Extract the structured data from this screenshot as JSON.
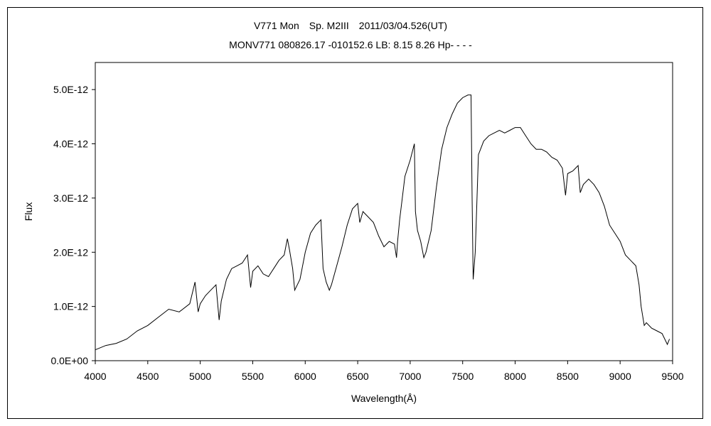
{
  "chart_data": {
    "type": "line",
    "title": "V771 Mon　Sp. M2III　2011/03/04.526(UT)",
    "subtitle": "MONV771 080826.17 -010152.6 LB: 8.15 8.26 Hp- - - -",
    "xlabel": "Wavelength(Å)",
    "ylabel": "Flux",
    "xlim": [
      4000,
      9500
    ],
    "ylim": [
      0,
      5.5e-12
    ],
    "x_ticks": [
      4000,
      4500,
      5000,
      5500,
      6000,
      6500,
      7000,
      7500,
      8000,
      8500,
      9000,
      9500
    ],
    "x_tick_labels": [
      "4000",
      "4500",
      "5000",
      "5500",
      "6000",
      "6500",
      "7000",
      "7500",
      "8000",
      "8500",
      "9000",
      "9500"
    ],
    "y_ticks": [
      0,
      1e-12,
      2e-12,
      3e-12,
      4e-12,
      5e-12
    ],
    "y_tick_labels": [
      "0.0E+00",
      "1.0E-12",
      "2.0E-12",
      "3.0E-12",
      "4.0E-12",
      "5.0E-12"
    ],
    "grid": false,
    "line_color": "#000000",
    "x": [
      4000,
      4100,
      4200,
      4300,
      4400,
      4500,
      4600,
      4700,
      4800,
      4900,
      4950,
      4980,
      5000,
      5050,
      5100,
      5150,
      5180,
      5200,
      5250,
      5300,
      5350,
      5400,
      5450,
      5480,
      5500,
      5550,
      5600,
      5650,
      5700,
      5750,
      5800,
      5830,
      5850,
      5880,
      5900,
      5950,
      6000,
      6050,
      6100,
      6150,
      6170,
      6200,
      6230,
      6250,
      6300,
      6350,
      6400,
      6450,
      6500,
      6520,
      6550,
      6600,
      6650,
      6700,
      6750,
      6800,
      6850,
      6870,
      6880,
      6900,
      6950,
      7000,
      7040,
      7050,
      7070,
      7100,
      7130,
      7150,
      7200,
      7250,
      7300,
      7350,
      7400,
      7450,
      7500,
      7550,
      7580,
      7590,
      7600,
      7620,
      7650,
      7700,
      7750,
      7800,
      7850,
      7900,
      7950,
      8000,
      8050,
      8100,
      8150,
      8200,
      8250,
      8300,
      8350,
      8400,
      8450,
      8480,
      8500,
      8550,
      8600,
      8620,
      8650,
      8700,
      8750,
      8800,
      8850,
      8900,
      8950,
      9000,
      9050,
      9100,
      9150,
      9180,
      9200,
      9230,
      9250,
      9300,
      9350,
      9400,
      9450,
      9470
    ],
    "y": [
      2e-13,
      2.8e-13,
      3.2e-13,
      4e-13,
      5.5e-13,
      6.5e-13,
      8e-13,
      9.5e-13,
      9e-13,
      1.05e-12,
      1.45e-12,
      9e-13,
      1.05e-12,
      1.2e-12,
      1.3e-12,
      1.4e-12,
      7.5e-13,
      1.1e-12,
      1.5e-12,
      1.7e-12,
      1.75e-12,
      1.8e-12,
      1.95e-12,
      1.35e-12,
      1.65e-12,
      1.75e-12,
      1.6e-12,
      1.55e-12,
      1.7e-12,
      1.85e-12,
      1.95e-12,
      2.25e-12,
      2.05e-12,
      1.7e-12,
      1.3e-12,
      1.5e-12,
      2e-12,
      2.35e-12,
      2.5e-12,
      2.6e-12,
      1.7e-12,
      1.45e-12,
      1.3e-12,
      1.4e-12,
      1.75e-12,
      2.1e-12,
      2.5e-12,
      2.8e-12,
      2.9e-12,
      2.55e-12,
      2.75e-12,
      2.65e-12,
      2.55e-12,
      2.3e-12,
      2.1e-12,
      2.2e-12,
      2.15e-12,
      1.9e-12,
      2.2e-12,
      2.6e-12,
      3.4e-12,
      3.7e-12,
      4e-12,
      2.75e-12,
      2.4e-12,
      2.2e-12,
      1.9e-12,
      2e-12,
      2.4e-12,
      3.2e-12,
      3.9e-12,
      4.3e-12,
      4.55e-12,
      4.75e-12,
      4.85e-12,
      4.9e-12,
      4.9e-12,
      3e-12,
      1.5e-12,
      2e-12,
      3.8e-12,
      4.05e-12,
      4.15e-12,
      4.2e-12,
      4.25e-12,
      4.2e-12,
      4.25e-12,
      4.3e-12,
      4.3e-12,
      4.15e-12,
      4e-12,
      3.9e-12,
      3.9e-12,
      3.85e-12,
      3.75e-12,
      3.7e-12,
      3.55e-12,
      3.05e-12,
      3.45e-12,
      3.5e-12,
      3.6e-12,
      3.1e-12,
      3.25e-12,
      3.35e-12,
      3.25e-12,
      3.1e-12,
      2.85e-12,
      2.5e-12,
      2.35e-12,
      2.2e-12,
      1.95e-12,
      1.85e-12,
      1.75e-12,
      1.4e-12,
      1e-12,
      6.5e-13,
      7e-13,
      6e-13,
      5.5e-13,
      5e-13,
      3e-13,
      4e-13
    ]
  }
}
